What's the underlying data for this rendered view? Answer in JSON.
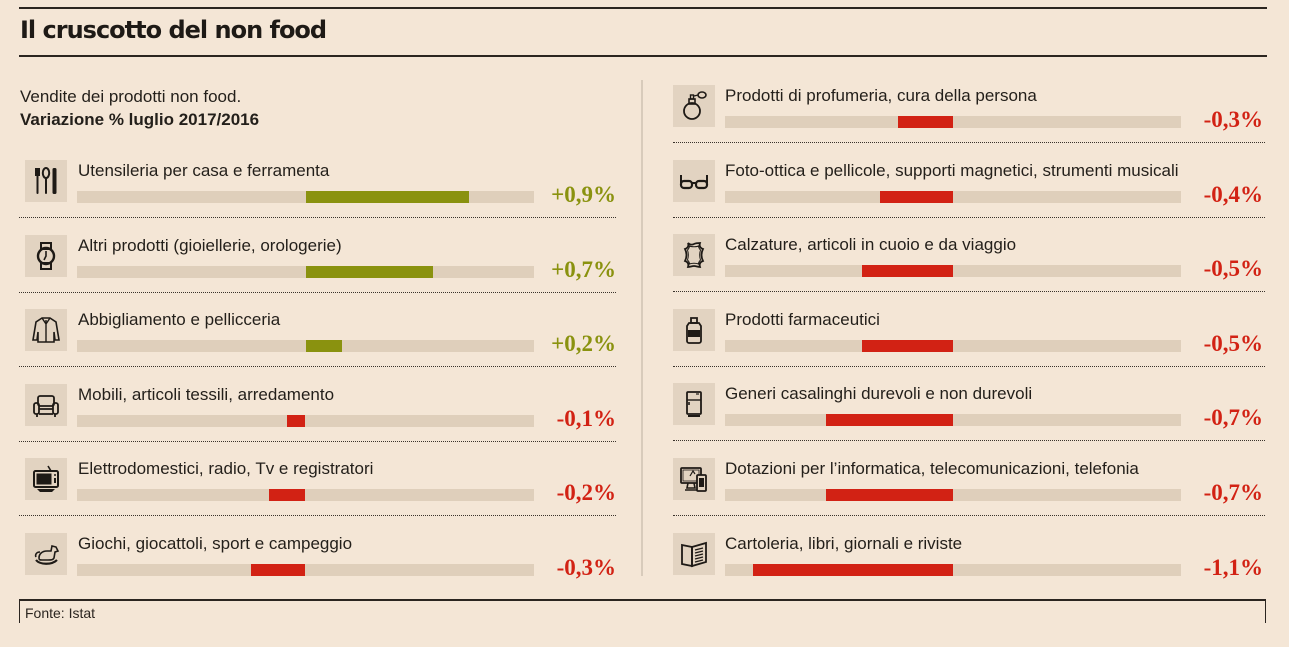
{
  "header": {
    "title": "Il cruscotto del non food",
    "subtitle": "Vendite dei prodotti non food.",
    "subtitle_bold": "Variazione % luglio 2017/2016"
  },
  "colors": {
    "positive": "#8a920f",
    "negative": "#d22214",
    "track": "#dfcfbb",
    "icon_bg": "#e2d3c1",
    "background": "#f4e6d6"
  },
  "chart_data": {
    "type": "bar",
    "title": "Il cruscotto del non food",
    "subtitle": "Vendite dei prodotti non food. Variazione % luglio 2017/2016",
    "unit": "%",
    "orientation": "horizontal-diverging",
    "xlim": [
      -1.25,
      1.25
    ],
    "panels": [
      {
        "name": "left",
        "rows": [
          {
            "label": "Utensileria per casa e ferramenta",
            "value": 0.9,
            "display": "+0,9%",
            "icon": "cutlery-icon"
          },
          {
            "label": "Altri prodotti (gioiellerie, orologerie)",
            "value": 0.7,
            "display": "+0,7%",
            "icon": "watch-icon"
          },
          {
            "label": "Abbigliamento e pellicceria",
            "value": 0.2,
            "display": "+0,2%",
            "icon": "jacket-icon"
          },
          {
            "label": "Mobili, articoli tessili, arredamento",
            "value": -0.1,
            "display": "-0,1%",
            "icon": "armchair-icon"
          },
          {
            "label": "Elettrodomestici, radio, Tv e registratori",
            "value": -0.2,
            "display": "-0,2%",
            "icon": "tv-icon"
          },
          {
            "label": "Giochi, giocattoli, sport e campeggio",
            "value": -0.3,
            "display": "-0,3%",
            "icon": "rocking-horse-icon"
          }
        ]
      },
      {
        "name": "right",
        "rows": [
          {
            "label": "Prodotti di profumeria, cura della persona",
            "value": -0.3,
            "display": "-0,3%",
            "icon": "perfume-icon"
          },
          {
            "label": "Foto-ottica e pellicole, supporti magnetici, strumenti musicali",
            "value": -0.4,
            "display": "-0,4%",
            "icon": "glasses-icon"
          },
          {
            "label": "Calzature, articoli in cuoio e da viaggio",
            "value": -0.5,
            "display": "-0,5%",
            "icon": "leather-hide-icon"
          },
          {
            "label": "Prodotti farmaceutici",
            "value": -0.5,
            "display": "-0,5%",
            "icon": "medicine-bottle-icon"
          },
          {
            "label": "Generi casalinghi durevoli e non durevoli",
            "value": -0.7,
            "display": "-0,7%",
            "icon": "fridge-icon"
          },
          {
            "label": "Dotazioni per l’informatica, telecomunicazioni, telefonia",
            "value": -0.7,
            "display": "-0,7%",
            "icon": "computer-phone-icon"
          },
          {
            "label": "Cartoleria, libri, giornali e riviste",
            "value": -1.1,
            "display": "-1,1%",
            "icon": "book-icon"
          }
        ]
      }
    ]
  },
  "footer": {
    "source": "Fonte: Istat"
  }
}
